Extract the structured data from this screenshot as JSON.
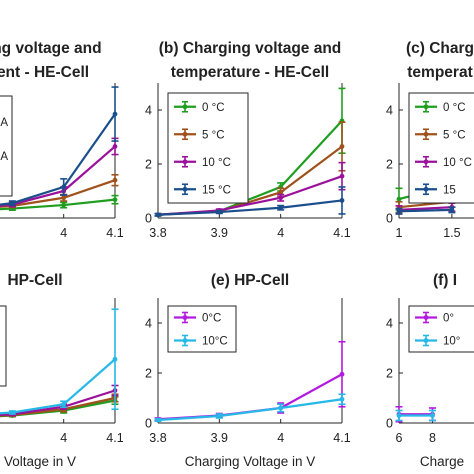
{
  "chart_data": [
    {
      "id": "a",
      "type": "line",
      "title": [
        "ging voltage and",
        "rent - HE-Cell"
      ],
      "xlabel": "",
      "ylabel": "",
      "x_ticks": [
        4,
        4.1
      ],
      "xlim": [
        3.72,
        4.1
      ],
      "ylim": [
        0,
        5
      ],
      "y_ticks": [],
      "legend": {
        "position": "left",
        "labels": [
          "A",
          "A"
        ]
      },
      "series": [
        {
          "color": "#1f9e1f",
          "x": [
            3.8,
            3.9,
            4.0,
            4.1
          ],
          "y": [
            0.25,
            0.35,
            0.48,
            0.68
          ],
          "err": [
            0.06,
            0.06,
            0.1,
            0.15
          ]
        },
        {
          "color": "#a0521c",
          "x": [
            3.8,
            3.9,
            4.0,
            4.1
          ],
          "y": [
            0.3,
            0.45,
            0.75,
            1.4
          ],
          "err": [
            0.06,
            0.06,
            0.12,
            0.2
          ]
        },
        {
          "color": "#9b119b",
          "x": [
            3.8,
            3.9,
            4.0,
            4.1
          ],
          "y": [
            0.3,
            0.5,
            1.0,
            2.65
          ],
          "err": [
            0.06,
            0.08,
            0.15,
            0.3
          ]
        },
        {
          "color": "#1a4f8c",
          "x": [
            3.8,
            3.9,
            4.0,
            4.1
          ],
          "y": [
            0.32,
            0.55,
            1.15,
            3.85
          ],
          "err": [
            0.06,
            0.08,
            0.3,
            1.0
          ]
        }
      ]
    },
    {
      "id": "b",
      "type": "line",
      "title": [
        "(b) Charging voltage and",
        "temperature - HE-Cell"
      ],
      "xlabel": "",
      "ylabel": "",
      "x_ticks": [
        3.8,
        3.9,
        4,
        4.1
      ],
      "xlim": [
        3.8,
        4.1
      ],
      "ylim": [
        0,
        5
      ],
      "y_ticks": [
        0,
        2,
        4
      ],
      "legend": {
        "position": "top-left",
        "labels": [
          "0 °C",
          "5 °C",
          "10 °C",
          "15 °C"
        ]
      },
      "series": [
        {
          "color": "#1f9e1f",
          "x": [
            3.8,
            3.9,
            4.0,
            4.1
          ],
          "y": [
            0.12,
            0.25,
            1.15,
            3.6
          ],
          "err": [
            0.04,
            0.05,
            0.15,
            1.2
          ]
        },
        {
          "color": "#a0521c",
          "x": [
            3.8,
            3.9,
            4.0,
            4.1
          ],
          "y": [
            0.12,
            0.25,
            0.95,
            2.65
          ],
          "err": [
            0.04,
            0.05,
            0.15,
            0.9
          ]
        },
        {
          "color": "#9b119b",
          "x": [
            3.8,
            3.9,
            4.0,
            4.1
          ],
          "y": [
            0.12,
            0.28,
            0.75,
            1.55
          ],
          "err": [
            0.04,
            0.05,
            0.12,
            0.5
          ]
        },
        {
          "color": "#1a4f8c",
          "x": [
            3.8,
            3.9,
            4.0,
            4.1
          ],
          "y": [
            0.12,
            0.22,
            0.38,
            0.65
          ],
          "err": [
            0.04,
            0.05,
            0.08,
            0.5
          ]
        }
      ]
    },
    {
      "id": "c",
      "type": "line",
      "title": [
        "(c) Charg",
        "temperat"
      ],
      "xlabel": "",
      "ylabel": "",
      "x_ticks": [
        1,
        1.5
      ],
      "xlim": [
        1,
        2.9
      ],
      "ylim": [
        0,
        5
      ],
      "y_ticks": [
        0,
        2,
        4
      ],
      "legend": {
        "position": "top-right",
        "labels": [
          "0 °C",
          "5 °C",
          "10 °C",
          "15"
        ]
      },
      "series": [
        {
          "color": "#1f9e1f",
          "x": [
            1.0,
            1.5
          ],
          "y": [
            0.7,
            1.2
          ],
          "err": [
            0.4,
            0.3
          ]
        },
        {
          "color": "#a0521c",
          "x": [
            1.0,
            1.5
          ],
          "y": [
            0.4,
            0.6
          ],
          "err": [
            0.2,
            0.2
          ]
        },
        {
          "color": "#9b119b",
          "x": [
            1.0,
            1.5
          ],
          "y": [
            0.3,
            0.4
          ],
          "err": [
            0.15,
            0.15
          ]
        },
        {
          "color": "#1a4f8c",
          "x": [
            1.0,
            1.5
          ],
          "y": [
            0.25,
            0.3
          ],
          "err": [
            0.1,
            0.1
          ]
        }
      ]
    },
    {
      "id": "d",
      "type": "line",
      "title": [
        "HP-Cell"
      ],
      "xlabel": "Voltage in V",
      "ylabel": "",
      "x_ticks": [
        4,
        4.1
      ],
      "xlim": [
        3.72,
        4.1
      ],
      "ylim": [
        0,
        5
      ],
      "y_ticks": [],
      "legend": {
        "position": "left",
        "labels": []
      },
      "series": [
        {
          "color": "#1f9e1f",
          "x": [
            3.8,
            3.9,
            4.0,
            4.1
          ],
          "y": [
            0.2,
            0.3,
            0.5,
            0.9
          ],
          "err": [
            0.05,
            0.05,
            0.1,
            0.15
          ]
        },
        {
          "color": "#a0521c",
          "x": [
            3.8,
            3.9,
            4.0,
            4.1
          ],
          "y": [
            0.22,
            0.32,
            0.55,
            1.0
          ],
          "err": [
            0.05,
            0.05,
            0.1,
            0.15
          ]
        },
        {
          "color": "#9b119b",
          "x": [
            3.8,
            3.9,
            4.0,
            4.1
          ],
          "y": [
            0.25,
            0.35,
            0.65,
            1.3
          ],
          "err": [
            0.05,
            0.05,
            0.1,
            0.2
          ]
        },
        {
          "color": "#26b8e6",
          "x": [
            3.8,
            3.9,
            4.0,
            4.1
          ],
          "y": [
            0.3,
            0.42,
            0.75,
            2.55
          ],
          "err": [
            0.05,
            0.06,
            0.12,
            2.0
          ]
        }
      ]
    },
    {
      "id": "e",
      "type": "line",
      "title": [
        "(e) HP-Cell"
      ],
      "xlabel": "Charging Voltage in V",
      "ylabel": "",
      "x_ticks": [
        3.8,
        3.9,
        4,
        4.1
      ],
      "xlim": [
        3.8,
        4.1
      ],
      "ylim": [
        0,
        5
      ],
      "y_ticks": [
        0,
        2,
        4
      ],
      "legend": {
        "position": "top-left",
        "labels": [
          "0°C",
          "10°C"
        ]
      },
      "series": [
        {
          "color": "#b31ae0",
          "x": [
            3.8,
            3.9,
            4.0,
            4.1
          ],
          "y": [
            0.15,
            0.3,
            0.6,
            1.95
          ],
          "err": [
            0.05,
            0.08,
            0.2,
            1.3
          ]
        },
        {
          "color": "#26b8e6",
          "x": [
            3.8,
            3.9,
            4.0,
            4.1
          ],
          "y": [
            0.12,
            0.28,
            0.6,
            0.95
          ],
          "err": [
            0.05,
            0.08,
            0.15,
            0.2
          ]
        }
      ]
    },
    {
      "id": "f",
      "type": "line",
      "title": [
        "(f) I"
      ],
      "xlabel": "Charge",
      "ylabel": "",
      "x_ticks": [
        6,
        8
      ],
      "xlim": [
        6,
        18
      ],
      "ylim": [
        0,
        5
      ],
      "y_ticks": [
        0,
        2,
        4
      ],
      "legend": {
        "position": "top-right",
        "labels": [
          "0°",
          "10°"
        ]
      },
      "series": [
        {
          "color": "#b31ae0",
          "x": [
            6,
            8
          ],
          "y": [
            0.35,
            0.35
          ],
          "err": [
            0.3,
            0.25
          ]
        },
        {
          "color": "#26b8e6",
          "x": [
            6,
            8
          ],
          "y": [
            0.3,
            0.3
          ],
          "err": [
            0.2,
            0.2
          ]
        }
      ]
    }
  ]
}
